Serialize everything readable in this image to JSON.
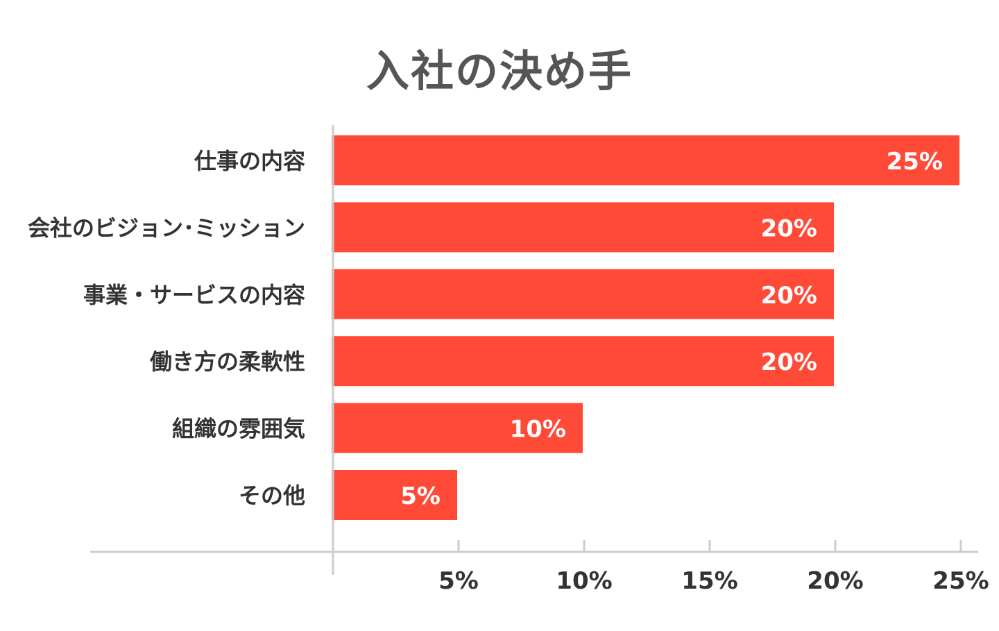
{
  "chart_data": {
    "type": "bar",
    "orientation": "horizontal",
    "title": "入社の決め手",
    "xlabel": "",
    "ylabel": "",
    "categories": [
      "仕事の内容",
      "会社のビジョン･ミッション",
      "事業・サービスの内容",
      "働き方の柔軟性",
      "組織の雰囲気",
      "その他"
    ],
    "values": [
      25,
      20,
      20,
      20,
      10,
      5
    ],
    "value_labels": [
      "25%",
      "20%",
      "20%",
      "20%",
      "10%",
      "5%"
    ],
    "xlim": [
      0,
      25
    ],
    "x_ticks": [
      5,
      10,
      15,
      20,
      25
    ],
    "x_tick_labels": [
      "5%",
      "10%",
      "15%",
      "20%",
      "25%"
    ],
    "grid": false,
    "legend": "none",
    "bar_color": "#FF4A38",
    "axis_color": "#CCCCCC"
  }
}
